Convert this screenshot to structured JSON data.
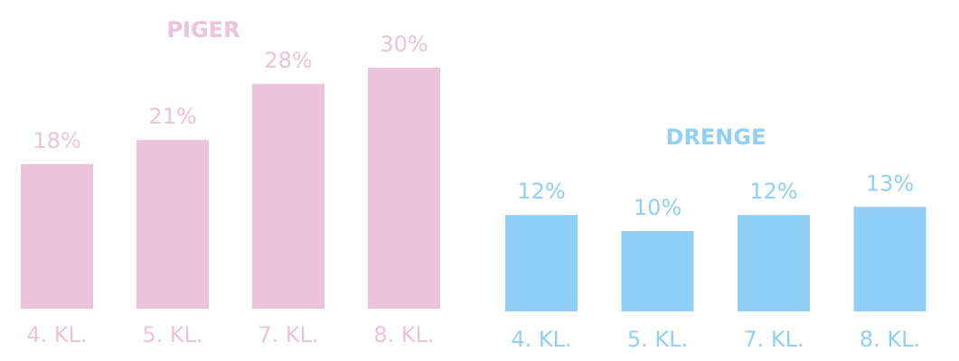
{
  "chart_data": [
    {
      "type": "bar",
      "title": "PIGER",
      "color": "#ecc4d7",
      "categories": [
        "4. KL.",
        "5. KL.",
        "7. KL.",
        "8. KL."
      ],
      "values": [
        18,
        21,
        28,
        30
      ],
      "value_labels": [
        "18%",
        "21%",
        "28%",
        "30%"
      ]
    },
    {
      "type": "bar",
      "title": "DRENGE",
      "color": "#8fd0f8",
      "categories": [
        "4. KL.",
        "5. KL.",
        "7. KL.",
        "8. KL."
      ],
      "values": [
        12,
        10,
        12,
        13
      ],
      "value_labels": [
        "12%",
        "10%",
        "12%",
        "13%"
      ]
    }
  ]
}
